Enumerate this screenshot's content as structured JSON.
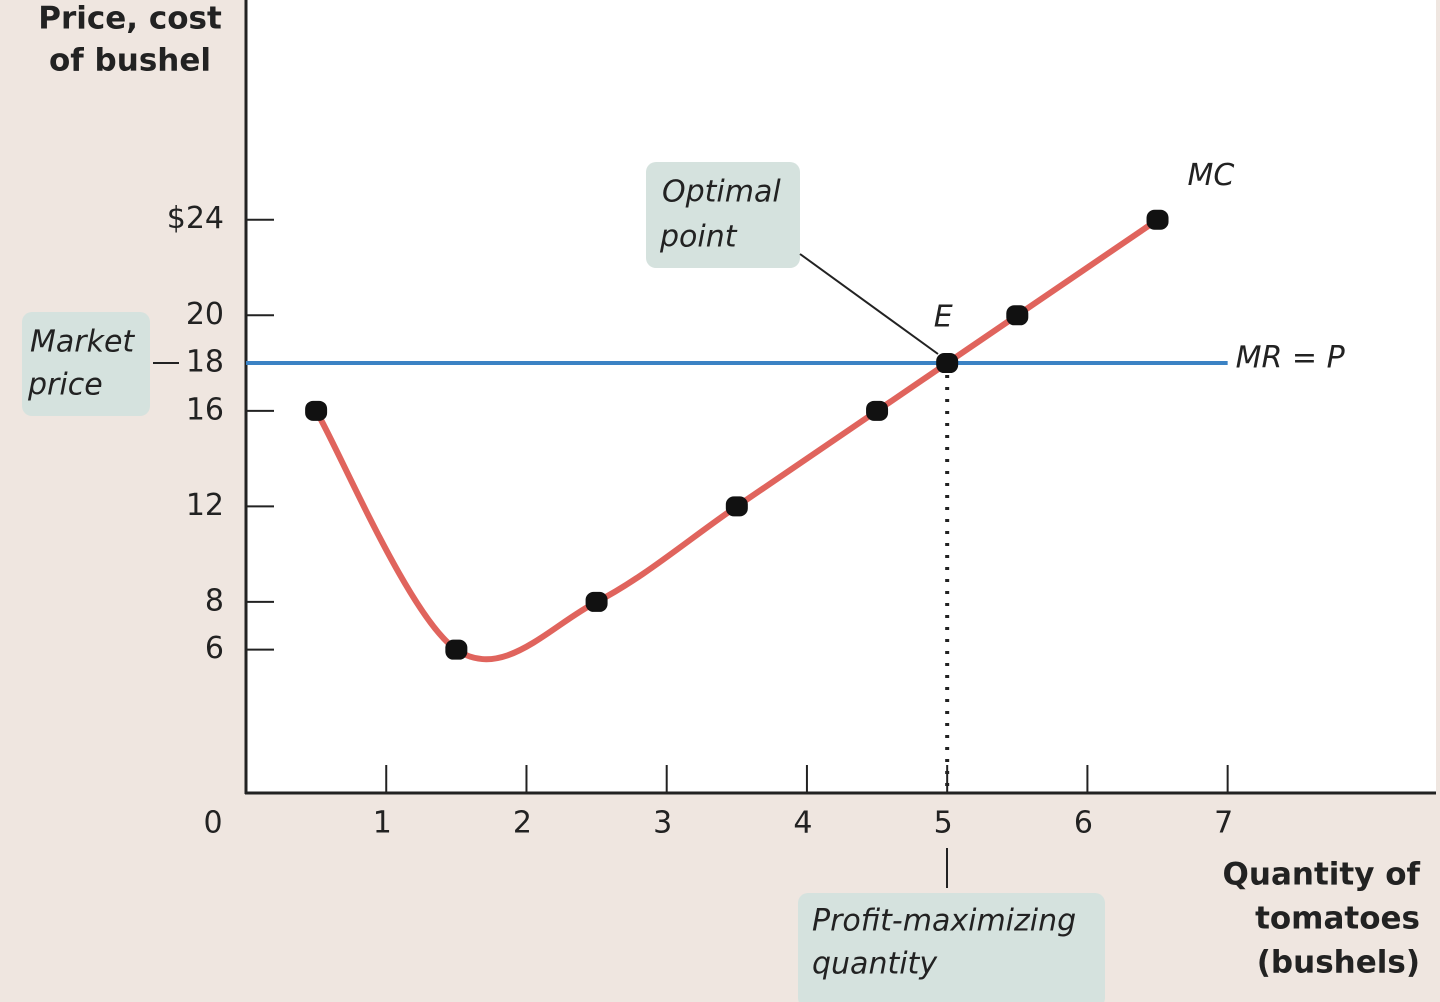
{
  "chart_data": {
    "type": "line",
    "y_label": [
      "Price, cost",
      "of bushel"
    ],
    "x_label": [
      "Quantity of",
      "tomatoes",
      "(bushels)"
    ],
    "xlim": [
      0,
      8.5
    ],
    "ylim": [
      0,
      33.2
    ],
    "xticks": [
      0,
      1,
      2,
      3,
      4,
      5,
      6,
      7
    ],
    "yticks": [
      6,
      8,
      12,
      16,
      18,
      20,
      {
        "value": 24,
        "label": "$24"
      }
    ],
    "series": [
      {
        "name": "MC",
        "color": "#e0645d",
        "x": [
          0.5,
          1.5,
          2.5,
          3.5,
          4.5,
          5,
          5.5,
          6.5
        ],
        "values": [
          16,
          6,
          8,
          12,
          16,
          18,
          20,
          24
        ]
      }
    ],
    "mr": {
      "name": "MR = P",
      "value": 18,
      "color": "#3b82c4"
    },
    "annotations": {
      "equilibrium": "E",
      "optimal_point": [
        "Optimal",
        "point"
      ],
      "market_price": [
        "Market",
        "price"
      ],
      "profit_max": [
        "Profit-maximizing",
        "quantity"
      ]
    }
  }
}
